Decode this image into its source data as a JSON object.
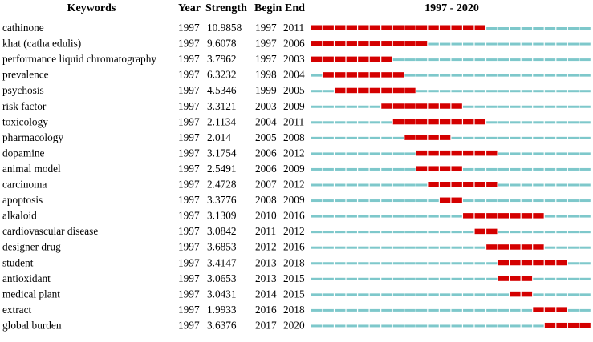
{
  "chart_data": {
    "type": "table",
    "headers": {
      "keyword": "Keywords",
      "year": "Year",
      "strength": "Strength",
      "begin": "Begin",
      "end": "End",
      "timeline": "1997 - 2020"
    },
    "timeline_range": [
      1997,
      2020
    ],
    "colors": {
      "burst": "#d40000",
      "baseline": "#7ec8cb"
    },
    "rows": [
      {
        "keyword": "cathinone",
        "year": "1997",
        "strength": "10.9858",
        "begin": "1997",
        "end": "2011"
      },
      {
        "keyword": "khat (catha edulis)",
        "year": "1997",
        "strength": "9.6078",
        "begin": "1997",
        "end": "2006"
      },
      {
        "keyword": "performance liquid chromatography",
        "year": "1997",
        "strength": "3.7962",
        "begin": "1997",
        "end": "2003"
      },
      {
        "keyword": "prevalence",
        "year": "1997",
        "strength": "6.3232",
        "begin": "1998",
        "end": "2004"
      },
      {
        "keyword": "psychosis",
        "year": "1997",
        "strength": "4.5346",
        "begin": "1999",
        "end": "2005"
      },
      {
        "keyword": "risk factor",
        "year": "1997",
        "strength": "3.3121",
        "begin": "2003",
        "end": "2009"
      },
      {
        "keyword": "toxicology",
        "year": "1997",
        "strength": "2.1134",
        "begin": "2004",
        "end": "2011"
      },
      {
        "keyword": "pharmacology",
        "year": "1997",
        "strength": "2.014",
        "begin": "2005",
        "end": "2008"
      },
      {
        "keyword": "dopamine",
        "year": "1997",
        "strength": "3.1754",
        "begin": "2006",
        "end": "2012"
      },
      {
        "keyword": "animal model",
        "year": "1997",
        "strength": "2.5491",
        "begin": "2006",
        "end": "2009"
      },
      {
        "keyword": "carcinoma",
        "year": "1997",
        "strength": "2.4728",
        "begin": "2007",
        "end": "2012"
      },
      {
        "keyword": "apoptosis",
        "year": "1997",
        "strength": "3.3776",
        "begin": "2008",
        "end": "2009"
      },
      {
        "keyword": "alkaloid",
        "year": "1997",
        "strength": "3.1309",
        "begin": "2010",
        "end": "2016"
      },
      {
        "keyword": "cardiovascular disease",
        "year": "1997",
        "strength": "3.0842",
        "begin": "2011",
        "end": "2012"
      },
      {
        "keyword": "designer drug",
        "year": "1997",
        "strength": "3.6853",
        "begin": "2012",
        "end": "2016"
      },
      {
        "keyword": "student",
        "year": "1997",
        "strength": "3.4147",
        "begin": "2013",
        "end": "2018"
      },
      {
        "keyword": "antioxidant",
        "year": "1997",
        "strength": "3.0653",
        "begin": "2013",
        "end": "2015"
      },
      {
        "keyword": "medical plant",
        "year": "1997",
        "strength": "3.0431",
        "begin": "2014",
        "end": "2015"
      },
      {
        "keyword": "extract",
        "year": "1997",
        "strength": "1.9933",
        "begin": "2016",
        "end": "2018"
      },
      {
        "keyword": "global burden",
        "year": "1997",
        "strength": "3.6376",
        "begin": "2017",
        "end": "2020"
      }
    ]
  }
}
